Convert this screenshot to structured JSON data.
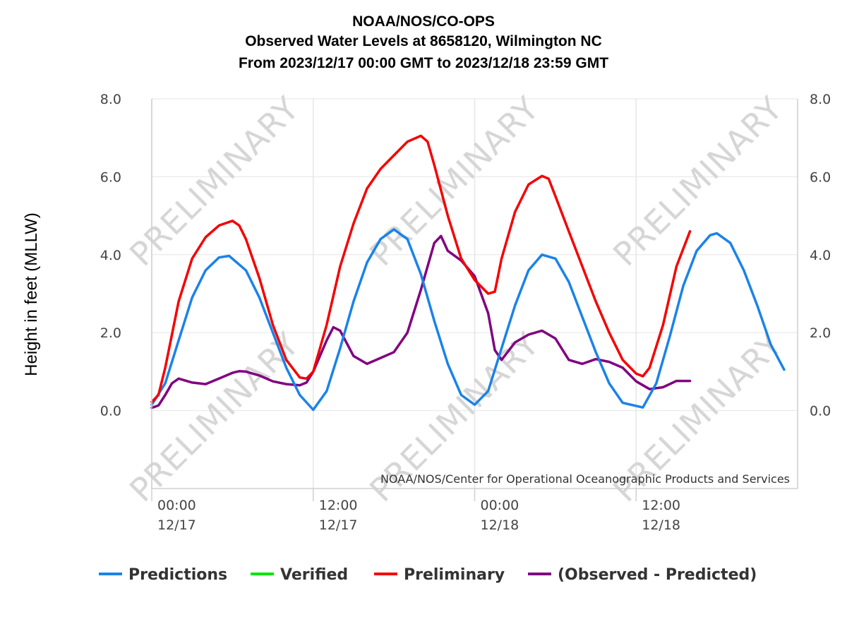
{
  "chart_data": {
    "type": "line",
    "title": [
      "NOAA/NOS/CO-OPS",
      "Observed Water Levels at 8658120, Wilmington NC",
      "From 2023/12/17 00:00 GMT to 2023/12/18 23:59 GMT"
    ],
    "ylabel": "Height in feet (MLLW)",
    "ylim": [
      -2,
      8
    ],
    "yticks": [
      {
        "v": 0,
        "label": "0.0"
      },
      {
        "v": 2,
        "label": "2.0"
      },
      {
        "v": 4,
        "label": "4.0"
      },
      {
        "v": 6,
        "label": "6.0"
      },
      {
        "v": 8,
        "label": "8.0"
      }
    ],
    "xlim": [
      "2023-12-17 00:00",
      "2023-12-19 00:00"
    ],
    "xticks": [
      {
        "time": "2023-12-17 00:00",
        "line1": "00:00",
        "line2": "12/17"
      },
      {
        "time": "2023-12-17 12:00",
        "line1": "12:00",
        "line2": "12/17"
      },
      {
        "time": "2023-12-18 00:00",
        "line1": "00:00",
        "line2": "12/18"
      },
      {
        "time": "2023-12-18 12:00",
        "line1": "12:00",
        "line2": "12/18"
      }
    ],
    "grid": true,
    "watermark": "PRELIMINARY",
    "credit": "NOAA/NOS/Center for Operational Oceanographic Products and Services",
    "legend": {
      "position": "bottom",
      "items": [
        "Predictions",
        "Verified",
        "Preliminary",
        "(Observed - Predicted)"
      ]
    },
    "series": [
      {
        "name": "Predictions",
        "color": "#1a83e8",
        "points": [
          [
            "2023-12-17 00:00",
            0.15
          ],
          [
            "2023-12-17 01:00",
            0.7
          ],
          [
            "2023-12-17 02:00",
            1.8
          ],
          [
            "2023-12-17 03:00",
            2.9
          ],
          [
            "2023-12-17 04:00",
            3.6
          ],
          [
            "2023-12-17 05:00",
            3.93
          ],
          [
            "2023-12-17 05:45",
            3.97
          ],
          [
            "2023-12-17 07:00",
            3.6
          ],
          [
            "2023-12-17 08:00",
            2.9
          ],
          [
            "2023-12-17 09:00",
            2.0
          ],
          [
            "2023-12-17 10:00",
            1.1
          ],
          [
            "2023-12-17 11:00",
            0.4
          ],
          [
            "2023-12-17 12:00",
            0.02
          ],
          [
            "2023-12-17 13:00",
            0.5
          ],
          [
            "2023-12-17 14:00",
            1.6
          ],
          [
            "2023-12-17 15:00",
            2.8
          ],
          [
            "2023-12-17 16:00",
            3.8
          ],
          [
            "2023-12-17 17:00",
            4.4
          ],
          [
            "2023-12-17 18:00",
            4.65
          ],
          [
            "2023-12-17 19:00",
            4.4
          ],
          [
            "2023-12-17 20:00",
            3.5
          ],
          [
            "2023-12-17 21:00",
            2.3
          ],
          [
            "2023-12-17 22:00",
            1.2
          ],
          [
            "2023-12-17 23:00",
            0.4
          ],
          [
            "2023-12-18 00:00",
            0.15
          ],
          [
            "2023-12-18 01:00",
            0.5
          ],
          [
            "2023-12-18 02:00",
            1.6
          ],
          [
            "2023-12-18 03:00",
            2.7
          ],
          [
            "2023-12-18 04:00",
            3.6
          ],
          [
            "2023-12-18 05:00",
            4.0
          ],
          [
            "2023-12-18 06:00",
            3.9
          ],
          [
            "2023-12-18 07:00",
            3.3
          ],
          [
            "2023-12-18 08:00",
            2.4
          ],
          [
            "2023-12-18 09:00",
            1.5
          ],
          [
            "2023-12-18 10:00",
            0.7
          ],
          [
            "2023-12-18 11:00",
            0.2
          ],
          [
            "2023-12-18 12:30",
            0.08
          ],
          [
            "2023-12-18 13:30",
            0.7
          ],
          [
            "2023-12-18 14:30",
            1.9
          ],
          [
            "2023-12-18 15:30",
            3.2
          ],
          [
            "2023-12-18 16:30",
            4.1
          ],
          [
            "2023-12-18 17:30",
            4.5
          ],
          [
            "2023-12-18 18:00",
            4.55
          ],
          [
            "2023-12-18 19:00",
            4.3
          ],
          [
            "2023-12-18 20:00",
            3.6
          ],
          [
            "2023-12-18 21:00",
            2.7
          ],
          [
            "2023-12-18 22:00",
            1.7
          ],
          [
            "2023-12-18 23:00",
            1.05
          ]
        ]
      },
      {
        "name": "Verified",
        "color": "#00e600",
        "points": []
      },
      {
        "name": "Preliminary",
        "color": "#f50000",
        "points": [
          [
            "2023-12-17 00:00",
            0.22
          ],
          [
            "2023-12-17 00:30",
            0.4
          ],
          [
            "2023-12-17 01:00",
            1.1
          ],
          [
            "2023-12-17 02:00",
            2.8
          ],
          [
            "2023-12-17 03:00",
            3.9
          ],
          [
            "2023-12-17 04:00",
            4.45
          ],
          [
            "2023-12-17 05:00",
            4.75
          ],
          [
            "2023-12-17 06:00",
            4.87
          ],
          [
            "2023-12-17 06:30",
            4.75
          ],
          [
            "2023-12-17 07:00",
            4.4
          ],
          [
            "2023-12-17 08:00",
            3.4
          ],
          [
            "2023-12-17 09:00",
            2.2
          ],
          [
            "2023-12-17 10:00",
            1.3
          ],
          [
            "2023-12-17 11:00",
            0.85
          ],
          [
            "2023-12-17 11:30",
            0.82
          ],
          [
            "2023-12-17 12:00",
            1.0
          ],
          [
            "2023-12-17 13:00",
            2.2
          ],
          [
            "2023-12-17 14:00",
            3.7
          ],
          [
            "2023-12-17 15:00",
            4.8
          ],
          [
            "2023-12-17 16:00",
            5.7
          ],
          [
            "2023-12-17 17:00",
            6.2
          ],
          [
            "2023-12-17 18:00",
            6.55
          ],
          [
            "2023-12-17 19:00",
            6.9
          ],
          [
            "2023-12-17 20:00",
            7.05
          ],
          [
            "2023-12-17 20:30",
            6.9
          ],
          [
            "2023-12-17 21:00",
            6.3
          ],
          [
            "2023-12-17 22:00",
            5.0
          ],
          [
            "2023-12-17 23:00",
            3.9
          ],
          [
            "2023-12-18 00:00",
            3.35
          ],
          [
            "2023-12-18 01:00",
            3.0
          ],
          [
            "2023-12-18 01:30",
            3.05
          ],
          [
            "2023-12-18 02:00",
            3.9
          ],
          [
            "2023-12-18 03:00",
            5.1
          ],
          [
            "2023-12-18 04:00",
            5.8
          ],
          [
            "2023-12-18 05:00",
            6.02
          ],
          [
            "2023-12-18 05:30",
            5.95
          ],
          [
            "2023-12-18 06:00",
            5.5
          ],
          [
            "2023-12-18 07:00",
            4.6
          ],
          [
            "2023-12-18 08:00",
            3.7
          ],
          [
            "2023-12-18 09:00",
            2.8
          ],
          [
            "2023-12-18 10:00",
            2.0
          ],
          [
            "2023-12-18 11:00",
            1.3
          ],
          [
            "2023-12-18 12:00",
            0.95
          ],
          [
            "2023-12-18 12:30",
            0.88
          ],
          [
            "2023-12-18 13:00",
            1.1
          ],
          [
            "2023-12-18 14:00",
            2.2
          ],
          [
            "2023-12-18 15:00",
            3.7
          ],
          [
            "2023-12-18 16:00",
            4.6
          ]
        ]
      },
      {
        "name": "(Observed - Predicted)",
        "color": "#800080",
        "points": [
          [
            "2023-12-17 00:00",
            0.07
          ],
          [
            "2023-12-17 00:30",
            0.13
          ],
          [
            "2023-12-17 01:00",
            0.4
          ],
          [
            "2023-12-17 01:30",
            0.7
          ],
          [
            "2023-12-17 02:00",
            0.82
          ],
          [
            "2023-12-17 03:00",
            0.72
          ],
          [
            "2023-12-17 04:00",
            0.68
          ],
          [
            "2023-12-17 05:00",
            0.82
          ],
          [
            "2023-12-17 06:00",
            0.97
          ],
          [
            "2023-12-17 06:30",
            1.01
          ],
          [
            "2023-12-17 07:00",
            1.0
          ],
          [
            "2023-12-17 08:00",
            0.9
          ],
          [
            "2023-12-17 09:00",
            0.75
          ],
          [
            "2023-12-17 10:00",
            0.68
          ],
          [
            "2023-12-17 11:00",
            0.65
          ],
          [
            "2023-12-17 11:30",
            0.72
          ],
          [
            "2023-12-17 12:00",
            1.0
          ],
          [
            "2023-12-17 13:00",
            1.8
          ],
          [
            "2023-12-17 13:30",
            2.14
          ],
          [
            "2023-12-17 14:00",
            2.05
          ],
          [
            "2023-12-17 15:00",
            1.4
          ],
          [
            "2023-12-17 16:00",
            1.2
          ],
          [
            "2023-12-17 17:00",
            1.35
          ],
          [
            "2023-12-17 18:00",
            1.5
          ],
          [
            "2023-12-17 19:00",
            2.0
          ],
          [
            "2023-12-17 20:00",
            3.1
          ],
          [
            "2023-12-17 21:00",
            4.3
          ],
          [
            "2023-12-17 21:30",
            4.48
          ],
          [
            "2023-12-17 22:00",
            4.1
          ],
          [
            "2023-12-17 23:00",
            3.85
          ],
          [
            "2023-12-18 00:00",
            3.45
          ],
          [
            "2023-12-18 01:00",
            2.5
          ],
          [
            "2023-12-18 01:30",
            1.55
          ],
          [
            "2023-12-18 02:00",
            1.3
          ],
          [
            "2023-12-18 03:00",
            1.75
          ],
          [
            "2023-12-18 04:00",
            1.95
          ],
          [
            "2023-12-18 05:00",
            2.05
          ],
          [
            "2023-12-18 06:00",
            1.85
          ],
          [
            "2023-12-18 07:00",
            1.3
          ],
          [
            "2023-12-18 08:00",
            1.2
          ],
          [
            "2023-12-18 09:00",
            1.32
          ],
          [
            "2023-12-18 10:00",
            1.25
          ],
          [
            "2023-12-18 11:00",
            1.1
          ],
          [
            "2023-12-18 12:00",
            0.75
          ],
          [
            "2023-12-18 13:00",
            0.55
          ],
          [
            "2023-12-18 14:00",
            0.6
          ],
          [
            "2023-12-18 15:00",
            0.76
          ],
          [
            "2023-12-18 16:00",
            0.76
          ]
        ]
      }
    ]
  }
}
